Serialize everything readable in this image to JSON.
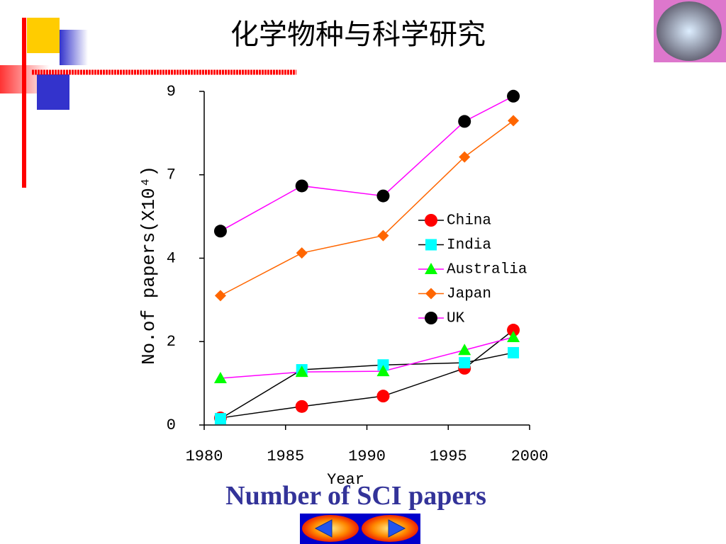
{
  "title": "化学物种与科学研究",
  "caption": "Number of SCI papers",
  "chart_data": {
    "type": "line",
    "y_label": "No.of papers(X10⁴)",
    "x_label": "Year",
    "xlim": [
      1980,
      2000
    ],
    "xticks": [
      1980,
      1985,
      1990,
      1995,
      2000
    ],
    "ylim": [
      0,
      9
    ],
    "yticks": [
      0,
      {
        "value": 2.25,
        "label": "2"
      },
      {
        "value": 4.5,
        "label": "4"
      },
      {
        "value": 6.75,
        "label": "7"
      },
      9
    ],
    "legend": "right",
    "x": [
      1981,
      1986,
      1991,
      1996,
      1999
    ],
    "series": [
      {
        "name": "China",
        "color": "#ff0000",
        "line_color": "#000000",
        "marker": "circle",
        "values": [
          0.19,
          0.5,
          0.78,
          1.53,
          2.56
        ]
      },
      {
        "name": "India",
        "color": "#00ffff",
        "line_color": "#000000",
        "marker": "square",
        "values": [
          0.17,
          1.49,
          1.62,
          1.68,
          1.95
        ]
      },
      {
        "name": "Australia",
        "color": "#00ff00",
        "line_color": "#ff00ff",
        "marker": "triangle",
        "values": [
          1.26,
          1.43,
          1.45,
          2.02,
          2.37
        ]
      },
      {
        "name": "Japan",
        "color": "#ff6600",
        "line_color": "#ff6600",
        "marker": "diamond",
        "values": [
          3.49,
          4.64,
          5.11,
          7.23,
          8.21
        ]
      },
      {
        "name": "UK",
        "color": "#000000",
        "line_color": "#ff00ff",
        "marker": "circle",
        "values": [
          5.23,
          6.45,
          6.18,
          8.19,
          8.87
        ]
      }
    ]
  }
}
